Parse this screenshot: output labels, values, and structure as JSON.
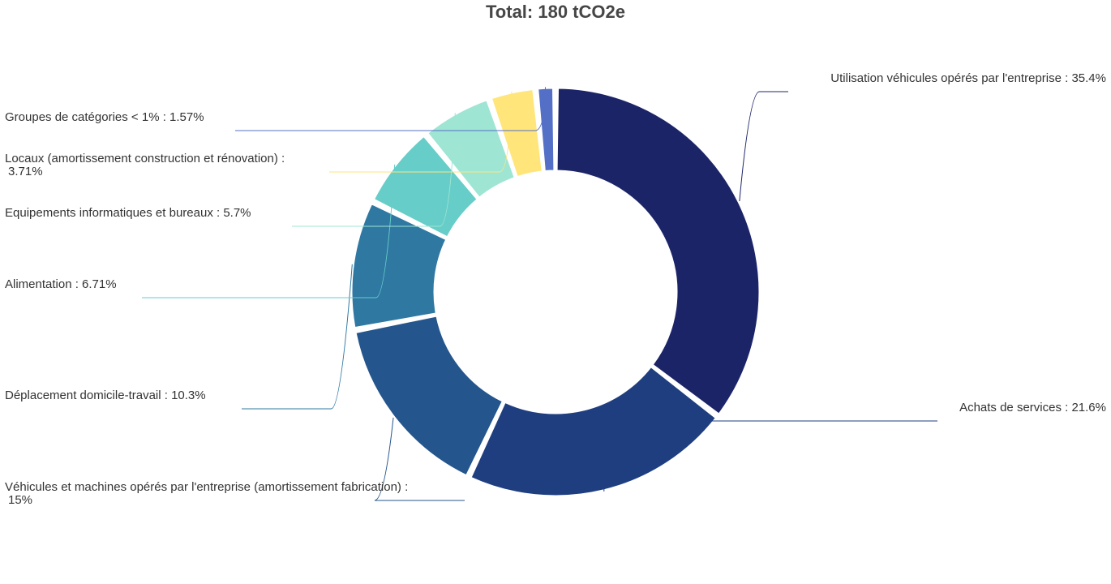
{
  "chart_data": {
    "type": "pie",
    "title": "Total: 180 tCO2e",
    "donut": true,
    "slices": [
      {
        "label": "Utilisation véhicules opérés par l'entreprise",
        "value": 35.4,
        "value_text": "35.4%",
        "color": "#1c2468"
      },
      {
        "label": "Achats de services",
        "value": 21.6,
        "value_text": "21.6%",
        "color": "#1f3e80"
      },
      {
        "label": "Véhicules et machines opérés par l'entreprise (amortissement fabrication)",
        "value": 15,
        "value_text": "15%",
        "color": "#24558d"
      },
      {
        "label": "Déplacement domicile-travail",
        "value": 10.3,
        "value_text": "10.3%",
        "color": "#2e78a2"
      },
      {
        "label": "Alimentation",
        "value": 6.71,
        "value_text": "6.71%",
        "color": "#66cdc8"
      },
      {
        "label": "Equipements informatiques et bureaux",
        "value": 5.7,
        "value_text": "5.7%",
        "color": "#9fe5d3"
      },
      {
        "label": "Locaux (amortissement construction et rénovation)",
        "value": 3.71,
        "value_text": "3.71%",
        "color": "#ffe57a"
      },
      {
        "label": "Groupes de catégories < 1%",
        "value": 1.57,
        "value_text": "1.57%",
        "color": "#5470c6"
      }
    ]
  }
}
